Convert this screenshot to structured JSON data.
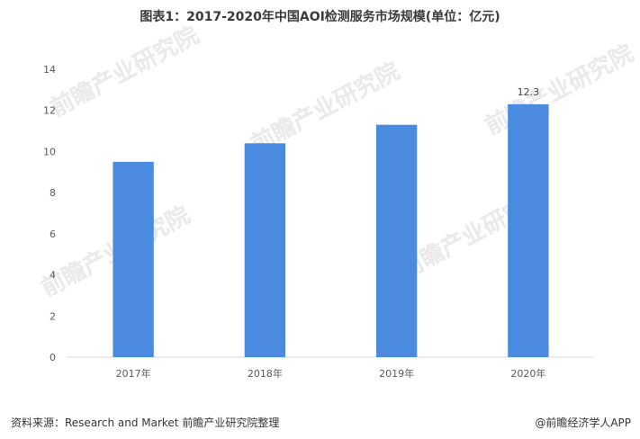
{
  "chart_title": "图表1：2017-2020年中国AOI检测服务市场规模(单位：亿元)",
  "source": "资料来源：Research and Market 前瞻产业研究院整理",
  "brand": "@前瞻经济学人APP",
  "watermark": "前瞻产业研究院",
  "colors": {
    "bar": "#4a8ae0",
    "axis": "#d9d9d9"
  },
  "chart_data": {
    "type": "bar",
    "title": "图表1：2017-2020年中国AOI检测服务市场规模(单位：亿元)",
    "xlabel": "",
    "ylabel": "",
    "categories": [
      "2017年",
      "2018年",
      "2019年",
      "2020年"
    ],
    "values": [
      9.5,
      10.4,
      11.3,
      12.3
    ],
    "data_labels": [
      "",
      "",
      "",
      "12.3"
    ],
    "ylim": [
      0,
      14
    ],
    "yticks": [
      0,
      2,
      4,
      6,
      8,
      10,
      12,
      14
    ],
    "grid": false,
    "legend": "none"
  }
}
